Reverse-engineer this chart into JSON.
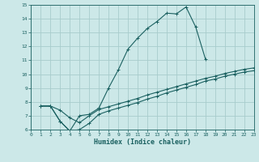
{
  "xlabel": "Humidex (Indice chaleur)",
  "bg_color": "#cce8e8",
  "grid_color": "#a8cccc",
  "line_color": "#1a6060",
  "xlim": [
    0,
    23
  ],
  "ylim": [
    6,
    15
  ],
  "xticks": [
    0,
    1,
    2,
    3,
    4,
    5,
    6,
    7,
    8,
    9,
    10,
    11,
    12,
    13,
    14,
    15,
    16,
    17,
    18,
    19,
    20,
    21,
    22,
    23
  ],
  "yticks": [
    6,
    7,
    8,
    9,
    10,
    11,
    12,
    13,
    14,
    15
  ],
  "line1_x": [
    1,
    2,
    3,
    4,
    5,
    6,
    7,
    8,
    9,
    10,
    11,
    12,
    13,
    14,
    15,
    16,
    17,
    18
  ],
  "line1_y": [
    7.7,
    7.7,
    6.6,
    5.9,
    7.0,
    7.1,
    7.55,
    9.0,
    10.3,
    11.8,
    12.6,
    13.3,
    13.8,
    14.4,
    14.35,
    14.85,
    13.4,
    11.1
  ],
  "line2_x": [
    1,
    2,
    3,
    4,
    5,
    6,
    7,
    8,
    9,
    10,
    11,
    12,
    13,
    14,
    15,
    16,
    17,
    18,
    19,
    20,
    21,
    22,
    23
  ],
  "line2_y": [
    7.7,
    7.7,
    7.4,
    6.85,
    6.5,
    7.0,
    7.45,
    7.65,
    7.85,
    8.05,
    8.25,
    8.5,
    8.7,
    8.9,
    9.1,
    9.3,
    9.5,
    9.7,
    9.85,
    10.05,
    10.2,
    10.35,
    10.45
  ],
  "line3_x": [
    1,
    2,
    3,
    4,
    5,
    6,
    7,
    8,
    9,
    10,
    11,
    12,
    13,
    14,
    15,
    16,
    17,
    18,
    19,
    20,
    21,
    22,
    23
  ],
  "line3_y": [
    7.7,
    7.7,
    6.6,
    5.9,
    6.0,
    6.45,
    7.1,
    7.35,
    7.55,
    7.75,
    7.95,
    8.2,
    8.4,
    8.65,
    8.85,
    9.05,
    9.25,
    9.5,
    9.65,
    9.85,
    10.0,
    10.15,
    10.25
  ]
}
